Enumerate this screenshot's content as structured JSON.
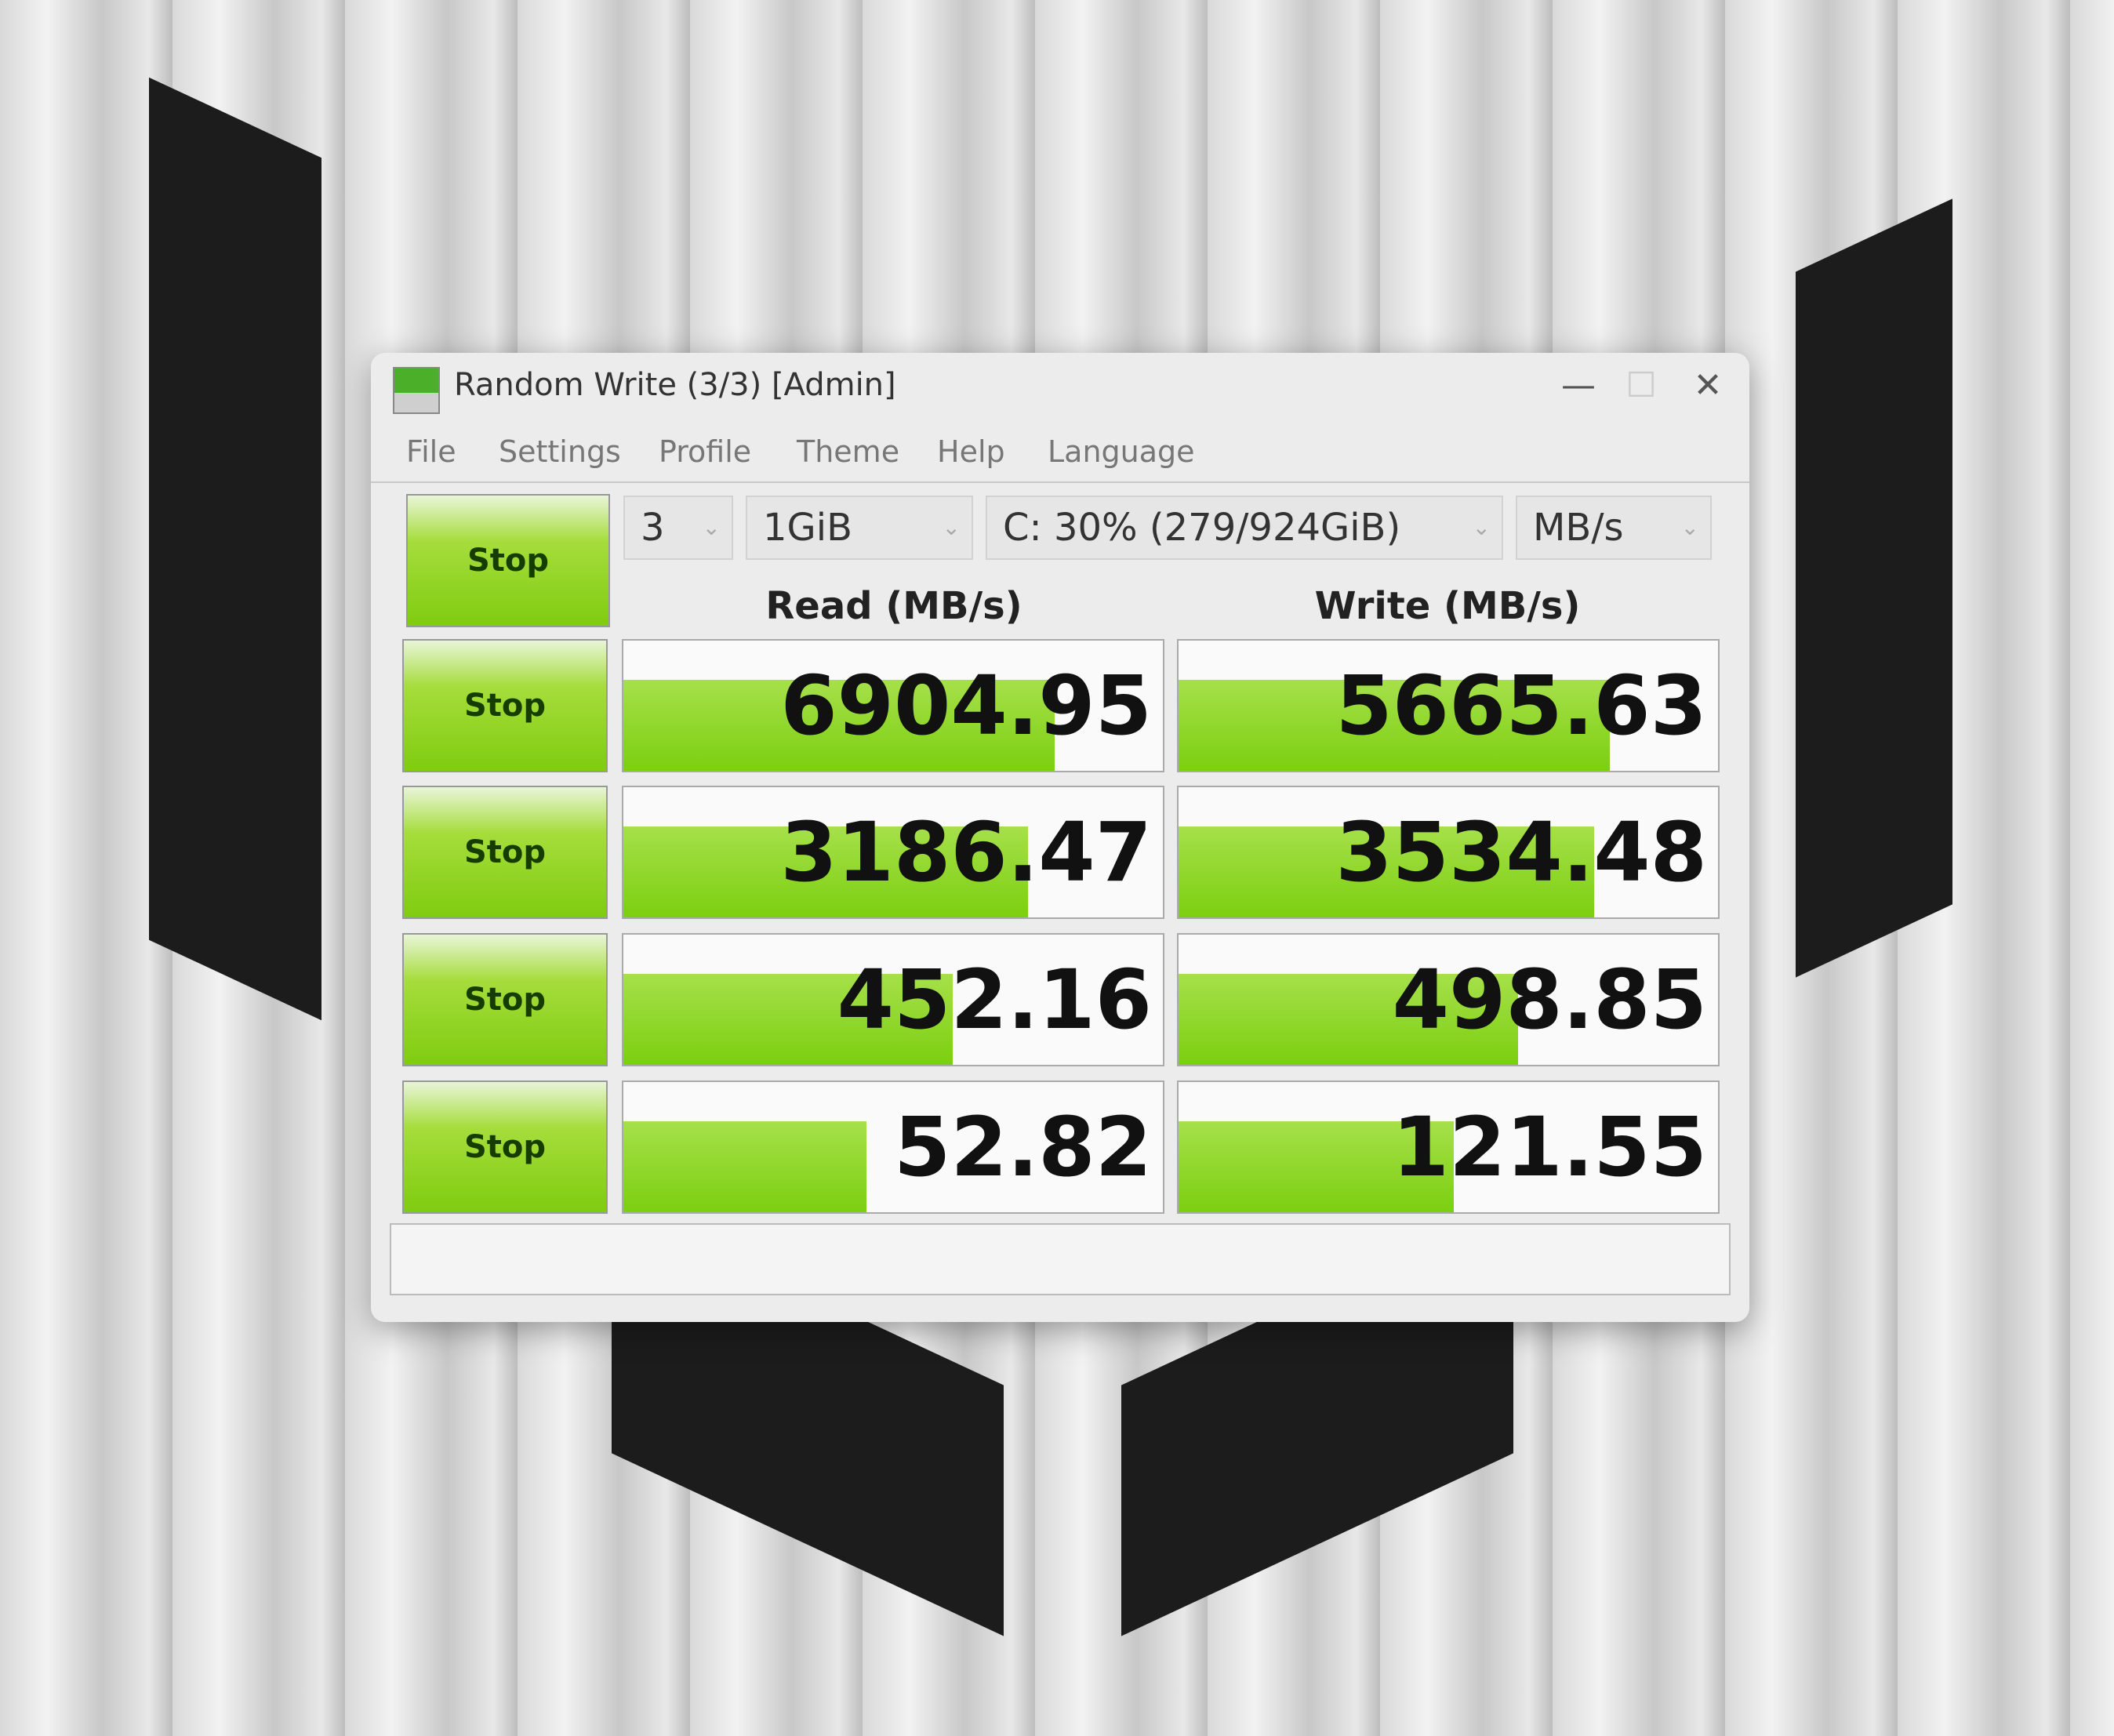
{
  "window": {
    "title": "Random Write (3/3) [Admin]",
    "minimize": "—",
    "maximize": "☐",
    "close": "✕"
  },
  "menu": [
    "File",
    "Settings",
    "Profile",
    "Theme",
    "Help",
    "Language"
  ],
  "controls": {
    "all_button": "Stop",
    "count": "3",
    "size": "1GiB",
    "drive": "C: 30% (279/924GiB)",
    "unit": "MB/s"
  },
  "headers": {
    "read": "Read (MB/s)",
    "write": "Write (MB/s)"
  },
  "rows": [
    {
      "button": "Stop",
      "read": "6904.95",
      "write": "5665.63",
      "read_fill": 0.8,
      "write_fill": 0.8
    },
    {
      "button": "Stop",
      "read": "3186.47",
      "write": "3534.48",
      "read_fill": 0.75,
      "write_fill": 0.77
    },
    {
      "button": "Stop",
      "read": "452.16",
      "write": "498.85",
      "read_fill": 0.61,
      "write_fill": 0.63
    },
    {
      "button": "Stop",
      "read": "52.82",
      "write": "121.55",
      "read_fill": 0.45,
      "write_fill": 0.51
    }
  ],
  "status": "",
  "colors": {
    "accent": "#7ccf10"
  }
}
